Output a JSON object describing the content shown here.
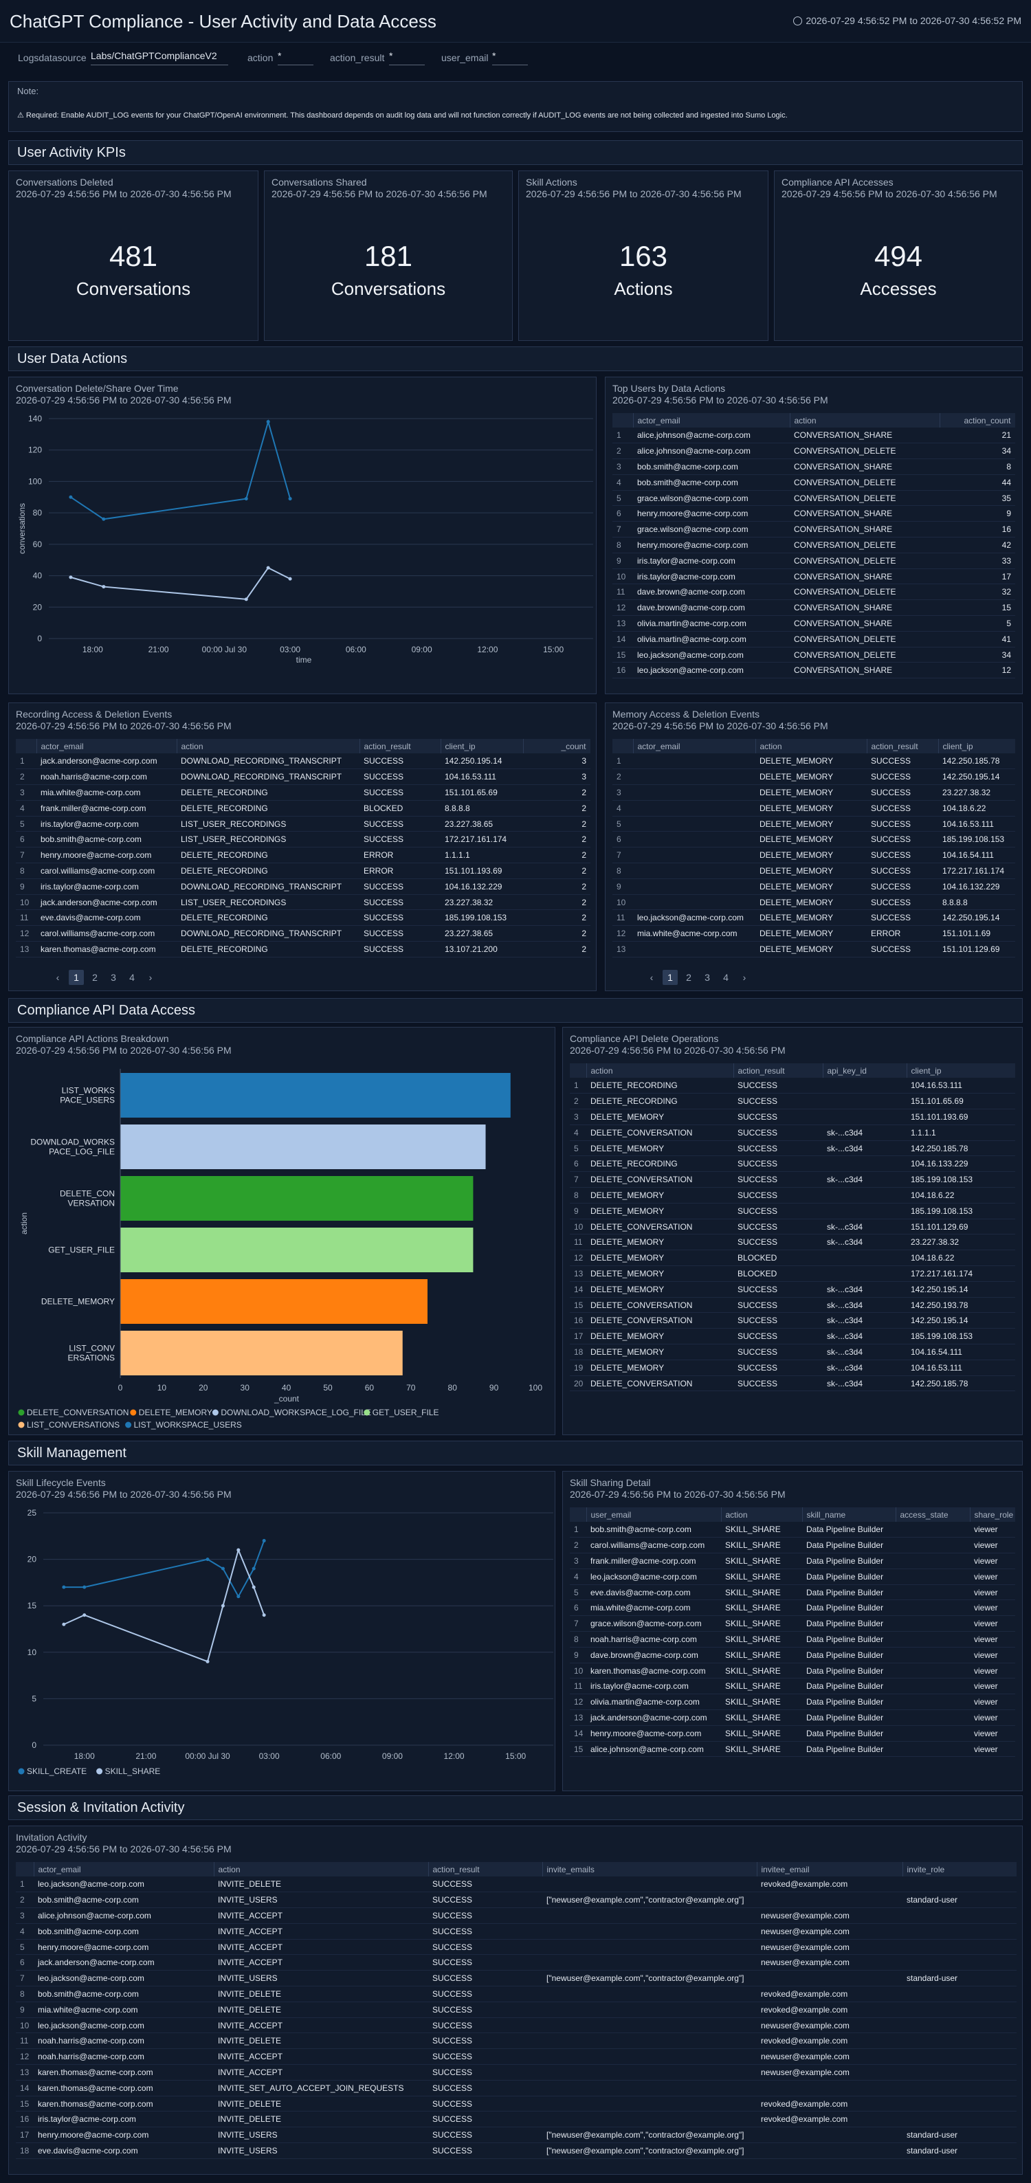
{
  "header": {
    "title": "ChatGPT Compliance - User Activity and Data Access",
    "time_range": "2026-07-29 4:56:52 PM to 2026-07-30 4:56:52 PM"
  },
  "filters": [
    {
      "label": "Logsdatasource",
      "value": "Labs/ChatGPTComplianceV2"
    },
    {
      "label": "action",
      "value": "*"
    },
    {
      "label": "action_result",
      "value": "*"
    },
    {
      "label": "user_email",
      "value": "*"
    }
  ],
  "note": {
    "label": "Note:",
    "text": "⚠ Required: Enable AUDIT_LOG events for your ChatGPT/OpenAI environment. This dashboard depends on audit log data and will not function correctly if AUDIT_LOG events are not being collected and ingested into Sumo Logic."
  },
  "sections": {
    "kpi": "User Activity KPIs",
    "data_actions": "User Data Actions",
    "compliance": "Compliance API Data Access",
    "skill": "Skill Management",
    "session": "Session & Invitation Activity"
  },
  "panel_range": "2026-07-29 4:56:56 PM to 2026-07-30 4:56:56 PM",
  "kpis": [
    {
      "title": "Conversations Deleted",
      "value": "481",
      "unit": "Conversations"
    },
    {
      "title": "Conversations Shared",
      "value": "181",
      "unit": "Conversations"
    },
    {
      "title": "Skill Actions",
      "value": "163",
      "unit": "Actions"
    },
    {
      "title": "Compliance API Accesses",
      "value": "494",
      "unit": "Accesses"
    }
  ],
  "chart_data": [
    {
      "type": "line",
      "title": "Conversation Delete/Share Over Time",
      "xlabel": "time",
      "ylabel": "conversations",
      "x_ticks": [
        "18:00",
        "21:00",
        "00:00 Jul 30",
        "03:00",
        "06:00",
        "09:00",
        "12:00",
        "15:00"
      ],
      "x": [
        "17:00",
        "18:30",
        "01:00",
        "02:00",
        "03:00"
      ],
      "ylim": [
        0,
        140
      ],
      "y_ticks": [
        0,
        20,
        40,
        60,
        80,
        100,
        120,
        140
      ],
      "grid": true,
      "legend": "bottom-left",
      "series": [
        {
          "name": "CONVERSATION_DELETE",
          "color": "#1f77b4",
          "values": [
            90,
            76,
            89,
            138,
            89
          ]
        },
        {
          "name": "CONVERSATION_SHARE",
          "color": "#aec7e8",
          "values": [
            39,
            33,
            25,
            45,
            38
          ]
        }
      ]
    },
    {
      "type": "bar",
      "orientation": "horizontal",
      "title": "Compliance API Actions Breakdown",
      "xlabel": "_count",
      "ylabel": "action",
      "xlim": [
        0,
        100
      ],
      "x_ticks": [
        0,
        10,
        20,
        30,
        40,
        50,
        60,
        70,
        80,
        90,
        100
      ],
      "legend": "bottom-left",
      "categories": [
        "LIST_WORKSPACE_USERS",
        "DOWNLOAD_WORKSPACE_LOG_FILE",
        "DELETE_CONVERSATION",
        "GET_USER_FILE",
        "DELETE_MEMORY",
        "LIST_CONVERSATIONS"
      ],
      "values": [
        94,
        88,
        85,
        85,
        74,
        68
      ],
      "colors": [
        "#1f77b4",
        "#aec7e8",
        "#2ca02c",
        "#98df8a",
        "#ff7f0e",
        "#ffbb78"
      ],
      "legend_items": [
        {
          "name": "DELETE_CONVERSATION",
          "color": "#2ca02c"
        },
        {
          "name": "DELETE_MEMORY",
          "color": "#ff7f0e"
        },
        {
          "name": "DOWNLOAD_WORKSPACE_LOG_FILE",
          "color": "#aec7e8"
        },
        {
          "name": "GET_USER_FILE",
          "color": "#98df8a"
        },
        {
          "name": "LIST_CONVERSATIONS",
          "color": "#ffbb78"
        },
        {
          "name": "LIST_WORKSPACE_USERS",
          "color": "#1f77b4"
        }
      ]
    },
    {
      "type": "line",
      "title": "Skill Lifecycle Events",
      "x_ticks": [
        "18:00",
        "21:00",
        "00:00 Jul 30",
        "03:00",
        "06:00",
        "09:00",
        "12:00",
        "15:00"
      ],
      "x": [
        "17:00",
        "18:00",
        "00:00",
        "00:45",
        "01:30",
        "02:15",
        "02:45"
      ],
      "ylim": [
        0,
        25
      ],
      "y_ticks": [
        0,
        5,
        10,
        15,
        20,
        25
      ],
      "grid": true,
      "legend": "bottom-left",
      "series": [
        {
          "name": "SKILL_CREATE",
          "color": "#1f77b4",
          "values": [
            17,
            17,
            20,
            19,
            16,
            19,
            22
          ]
        },
        {
          "name": "SKILL_SHARE",
          "color": "#aec7e8",
          "values": [
            13,
            14,
            9,
            15,
            21,
            17,
            14
          ]
        }
      ]
    }
  ],
  "top_users": {
    "title": "Top Users by Data Actions",
    "columns": [
      "actor_email",
      "action",
      "action_count"
    ],
    "rows": [
      [
        "alice.johnson@acme-corp.com",
        "CONVERSATION_SHARE",
        "21"
      ],
      [
        "alice.johnson@acme-corp.com",
        "CONVERSATION_DELETE",
        "34"
      ],
      [
        "bob.smith@acme-corp.com",
        "CONVERSATION_SHARE",
        "8"
      ],
      [
        "bob.smith@acme-corp.com",
        "CONVERSATION_DELETE",
        "44"
      ],
      [
        "grace.wilson@acme-corp.com",
        "CONVERSATION_DELETE",
        "35"
      ],
      [
        "henry.moore@acme-corp.com",
        "CONVERSATION_SHARE",
        "9"
      ],
      [
        "grace.wilson@acme-corp.com",
        "CONVERSATION_SHARE",
        "16"
      ],
      [
        "henry.moore@acme-corp.com",
        "CONVERSATION_DELETE",
        "42"
      ],
      [
        "iris.taylor@acme-corp.com",
        "CONVERSATION_DELETE",
        "33"
      ],
      [
        "iris.taylor@acme-corp.com",
        "CONVERSATION_SHARE",
        "17"
      ],
      [
        "dave.brown@acme-corp.com",
        "CONVERSATION_DELETE",
        "32"
      ],
      [
        "dave.brown@acme-corp.com",
        "CONVERSATION_SHARE",
        "15"
      ],
      [
        "olivia.martin@acme-corp.com",
        "CONVERSATION_SHARE",
        "5"
      ],
      [
        "olivia.martin@acme-corp.com",
        "CONVERSATION_DELETE",
        "41"
      ],
      [
        "leo.jackson@acme-corp.com",
        "CONVERSATION_DELETE",
        "34"
      ],
      [
        "leo.jackson@acme-corp.com",
        "CONVERSATION_SHARE",
        "12"
      ]
    ]
  },
  "recording": {
    "title": "Recording Access & Deletion Events",
    "columns": [
      "actor_email",
      "action",
      "action_result",
      "client_ip",
      "_count"
    ],
    "rows": [
      [
        "jack.anderson@acme-corp.com",
        "DOWNLOAD_RECORDING_TRANSCRIPT",
        "SUCCESS",
        "142.250.195.14",
        "3"
      ],
      [
        "noah.harris@acme-corp.com",
        "DOWNLOAD_RECORDING_TRANSCRIPT",
        "SUCCESS",
        "104.16.53.111",
        "3"
      ],
      [
        "mia.white@acme-corp.com",
        "DELETE_RECORDING",
        "SUCCESS",
        "151.101.65.69",
        "2"
      ],
      [
        "frank.miller@acme-corp.com",
        "DELETE_RECORDING",
        "BLOCKED",
        "8.8.8.8",
        "2"
      ],
      [
        "iris.taylor@acme-corp.com",
        "LIST_USER_RECORDINGS",
        "SUCCESS",
        "23.227.38.65",
        "2"
      ],
      [
        "bob.smith@acme-corp.com",
        "LIST_USER_RECORDINGS",
        "SUCCESS",
        "172.217.161.174",
        "2"
      ],
      [
        "henry.moore@acme-corp.com",
        "DELETE_RECORDING",
        "ERROR",
        "1.1.1.1",
        "2"
      ],
      [
        "carol.williams@acme-corp.com",
        "DELETE_RECORDING",
        "ERROR",
        "151.101.193.69",
        "2"
      ],
      [
        "iris.taylor@acme-corp.com",
        "DOWNLOAD_RECORDING_TRANSCRIPT",
        "SUCCESS",
        "104.16.132.229",
        "2"
      ],
      [
        "jack.anderson@acme-corp.com",
        "LIST_USER_RECORDINGS",
        "SUCCESS",
        "23.227.38.32",
        "2"
      ],
      [
        "eve.davis@acme-corp.com",
        "DELETE_RECORDING",
        "SUCCESS",
        "185.199.108.153",
        "2"
      ],
      [
        "carol.williams@acme-corp.com",
        "DOWNLOAD_RECORDING_TRANSCRIPT",
        "SUCCESS",
        "23.227.38.65",
        "2"
      ],
      [
        "karen.thomas@acme-corp.com",
        "DELETE_RECORDING",
        "SUCCESS",
        "13.107.21.200",
        "2"
      ]
    ],
    "pages": [
      "1",
      "2",
      "3",
      "4"
    ]
  },
  "memory": {
    "title": "Memory Access & Deletion Events",
    "columns": [
      "actor_email",
      "action",
      "action_result",
      "client_ip"
    ],
    "rows": [
      [
        "",
        "DELETE_MEMORY",
        "SUCCESS",
        "142.250.185.78"
      ],
      [
        "",
        "DELETE_MEMORY",
        "SUCCESS",
        "142.250.195.14"
      ],
      [
        "",
        "DELETE_MEMORY",
        "SUCCESS",
        "23.227.38.32"
      ],
      [
        "",
        "DELETE_MEMORY",
        "SUCCESS",
        "104.18.6.22"
      ],
      [
        "",
        "DELETE_MEMORY",
        "SUCCESS",
        "104.16.53.111"
      ],
      [
        "",
        "DELETE_MEMORY",
        "SUCCESS",
        "185.199.108.153"
      ],
      [
        "",
        "DELETE_MEMORY",
        "SUCCESS",
        "104.16.54.111"
      ],
      [
        "",
        "DELETE_MEMORY",
        "SUCCESS",
        "172.217.161.174"
      ],
      [
        "",
        "DELETE_MEMORY",
        "SUCCESS",
        "104.16.132.229"
      ],
      [
        "",
        "DELETE_MEMORY",
        "SUCCESS",
        "8.8.8.8"
      ],
      [
        "leo.jackson@acme-corp.com",
        "DELETE_MEMORY",
        "SUCCESS",
        "142.250.195.14"
      ],
      [
        "mia.white@acme-corp.com",
        "DELETE_MEMORY",
        "ERROR",
        "151.101.1.69"
      ],
      [
        "",
        "DELETE_MEMORY",
        "SUCCESS",
        "151.101.129.69"
      ]
    ],
    "pages": [
      "1",
      "2",
      "3",
      "4"
    ]
  },
  "compliance_delete": {
    "title": "Compliance API Delete Operations",
    "columns": [
      "action",
      "action_result",
      "api_key_id",
      "client_ip"
    ],
    "rows": [
      [
        "DELETE_RECORDING",
        "SUCCESS",
        "",
        "104.16.53.111"
      ],
      [
        "DELETE_RECORDING",
        "SUCCESS",
        "",
        "151.101.65.69"
      ],
      [
        "DELETE_MEMORY",
        "SUCCESS",
        "",
        "151.101.193.69"
      ],
      [
        "DELETE_CONVERSATION",
        "SUCCESS",
        "sk-...c3d4",
        "1.1.1.1"
      ],
      [
        "DELETE_MEMORY",
        "SUCCESS",
        "sk-...c3d4",
        "142.250.185.78"
      ],
      [
        "DELETE_RECORDING",
        "SUCCESS",
        "",
        "104.16.133.229"
      ],
      [
        "DELETE_CONVERSATION",
        "SUCCESS",
        "sk-...c3d4",
        "185.199.108.153"
      ],
      [
        "DELETE_MEMORY",
        "SUCCESS",
        "",
        "104.18.6.22"
      ],
      [
        "DELETE_MEMORY",
        "SUCCESS",
        "",
        "185.199.108.153"
      ],
      [
        "DELETE_CONVERSATION",
        "SUCCESS",
        "sk-...c3d4",
        "151.101.129.69"
      ],
      [
        "DELETE_MEMORY",
        "SUCCESS",
        "sk-...c3d4",
        "23.227.38.32"
      ],
      [
        "DELETE_MEMORY",
        "BLOCKED",
        "",
        "104.18.6.22"
      ],
      [
        "DELETE_MEMORY",
        "BLOCKED",
        "",
        "172.217.161.174"
      ],
      [
        "DELETE_MEMORY",
        "SUCCESS",
        "sk-...c3d4",
        "142.250.195.14"
      ],
      [
        "DELETE_CONVERSATION",
        "SUCCESS",
        "sk-...c3d4",
        "142.250.193.78"
      ],
      [
        "DELETE_CONVERSATION",
        "SUCCESS",
        "sk-...c3d4",
        "142.250.195.14"
      ],
      [
        "DELETE_MEMORY",
        "SUCCESS",
        "sk-...c3d4",
        "185.199.108.153"
      ],
      [
        "DELETE_MEMORY",
        "SUCCESS",
        "sk-...c3d4",
        "104.16.54.111"
      ],
      [
        "DELETE_MEMORY",
        "SUCCESS",
        "sk-...c3d4",
        "104.16.53.111"
      ],
      [
        "DELETE_CONVERSATION",
        "SUCCESS",
        "sk-...c3d4",
        "142.250.185.78"
      ]
    ]
  },
  "skill_sharing": {
    "title": "Skill Sharing Detail",
    "columns": [
      "user_email",
      "action",
      "skill_name",
      "access_state",
      "share_role"
    ],
    "rows": [
      [
        "bob.smith@acme-corp.com",
        "SKILL_SHARE",
        "Data Pipeline Builder",
        "",
        "viewer"
      ],
      [
        "carol.williams@acme-corp.com",
        "SKILL_SHARE",
        "Data Pipeline Builder",
        "",
        "viewer"
      ],
      [
        "frank.miller@acme-corp.com",
        "SKILL_SHARE",
        "Data Pipeline Builder",
        "",
        "viewer"
      ],
      [
        "leo.jackson@acme-corp.com",
        "SKILL_SHARE",
        "Data Pipeline Builder",
        "",
        "viewer"
      ],
      [
        "eve.davis@acme-corp.com",
        "SKILL_SHARE",
        "Data Pipeline Builder",
        "",
        "viewer"
      ],
      [
        "mia.white@acme-corp.com",
        "SKILL_SHARE",
        "Data Pipeline Builder",
        "",
        "viewer"
      ],
      [
        "grace.wilson@acme-corp.com",
        "SKILL_SHARE",
        "Data Pipeline Builder",
        "",
        "viewer"
      ],
      [
        "noah.harris@acme-corp.com",
        "SKILL_SHARE",
        "Data Pipeline Builder",
        "",
        "viewer"
      ],
      [
        "dave.brown@acme-corp.com",
        "SKILL_SHARE",
        "Data Pipeline Builder",
        "",
        "viewer"
      ],
      [
        "karen.thomas@acme-corp.com",
        "SKILL_SHARE",
        "Data Pipeline Builder",
        "",
        "viewer"
      ],
      [
        "iris.taylor@acme-corp.com",
        "SKILL_SHARE",
        "Data Pipeline Builder",
        "",
        "viewer"
      ],
      [
        "olivia.martin@acme-corp.com",
        "SKILL_SHARE",
        "Data Pipeline Builder",
        "",
        "viewer"
      ],
      [
        "jack.anderson@acme-corp.com",
        "SKILL_SHARE",
        "Data Pipeline Builder",
        "",
        "viewer"
      ],
      [
        "henry.moore@acme-corp.com",
        "SKILL_SHARE",
        "Data Pipeline Builder",
        "",
        "viewer"
      ],
      [
        "alice.johnson@acme-corp.com",
        "SKILL_SHARE",
        "Data Pipeline Builder",
        "",
        "viewer"
      ]
    ]
  },
  "invitation": {
    "title": "Invitation Activity",
    "columns": [
      "actor_email",
      "action",
      "action_result",
      "invite_emails",
      "invitee_email",
      "invite_role"
    ],
    "rows": [
      [
        "leo.jackson@acme-corp.com",
        "INVITE_DELETE",
        "SUCCESS",
        "",
        "revoked@example.com",
        ""
      ],
      [
        "bob.smith@acme-corp.com",
        "INVITE_USERS",
        "SUCCESS",
        "[\"newuser@example.com\",\"contractor@example.org\"]",
        "",
        "standard-user"
      ],
      [
        "alice.johnson@acme-corp.com",
        "INVITE_ACCEPT",
        "SUCCESS",
        "",
        "newuser@example.com",
        ""
      ],
      [
        "bob.smith@acme-corp.com",
        "INVITE_ACCEPT",
        "SUCCESS",
        "",
        "newuser@example.com",
        ""
      ],
      [
        "henry.moore@acme-corp.com",
        "INVITE_ACCEPT",
        "SUCCESS",
        "",
        "newuser@example.com",
        ""
      ],
      [
        "jack.anderson@acme-corp.com",
        "INVITE_ACCEPT",
        "SUCCESS",
        "",
        "newuser@example.com",
        ""
      ],
      [
        "leo.jackson@acme-corp.com",
        "INVITE_USERS",
        "SUCCESS",
        "[\"newuser@example.com\",\"contractor@example.org\"]",
        "",
        "standard-user"
      ],
      [
        "bob.smith@acme-corp.com",
        "INVITE_DELETE",
        "SUCCESS",
        "",
        "revoked@example.com",
        ""
      ],
      [
        "mia.white@acme-corp.com",
        "INVITE_DELETE",
        "SUCCESS",
        "",
        "revoked@example.com",
        ""
      ],
      [
        "leo.jackson@acme-corp.com",
        "INVITE_ACCEPT",
        "SUCCESS",
        "",
        "newuser@example.com",
        ""
      ],
      [
        "noah.harris@acme-corp.com",
        "INVITE_DELETE",
        "SUCCESS",
        "",
        "revoked@example.com",
        ""
      ],
      [
        "noah.harris@acme-corp.com",
        "INVITE_ACCEPT",
        "SUCCESS",
        "",
        "newuser@example.com",
        ""
      ],
      [
        "karen.thomas@acme-corp.com",
        "INVITE_ACCEPT",
        "SUCCESS",
        "",
        "newuser@example.com",
        ""
      ],
      [
        "karen.thomas@acme-corp.com",
        "INVITE_SET_AUTO_ACCEPT_JOIN_REQUESTS",
        "SUCCESS",
        "",
        "",
        ""
      ],
      [
        "karen.thomas@acme-corp.com",
        "INVITE_DELETE",
        "SUCCESS",
        "",
        "revoked@example.com",
        ""
      ],
      [
        "iris.taylor@acme-corp.com",
        "INVITE_DELETE",
        "SUCCESS",
        "",
        "revoked@example.com",
        ""
      ],
      [
        "henry.moore@acme-corp.com",
        "INVITE_USERS",
        "SUCCESS",
        "[\"newuser@example.com\",\"contractor@example.org\"]",
        "",
        "standard-user"
      ],
      [
        "eve.davis@acme-corp.com",
        "INVITE_USERS",
        "SUCCESS",
        "[\"newuser@example.com\",\"contractor@example.org\"]",
        "",
        "standard-user"
      ]
    ]
  }
}
